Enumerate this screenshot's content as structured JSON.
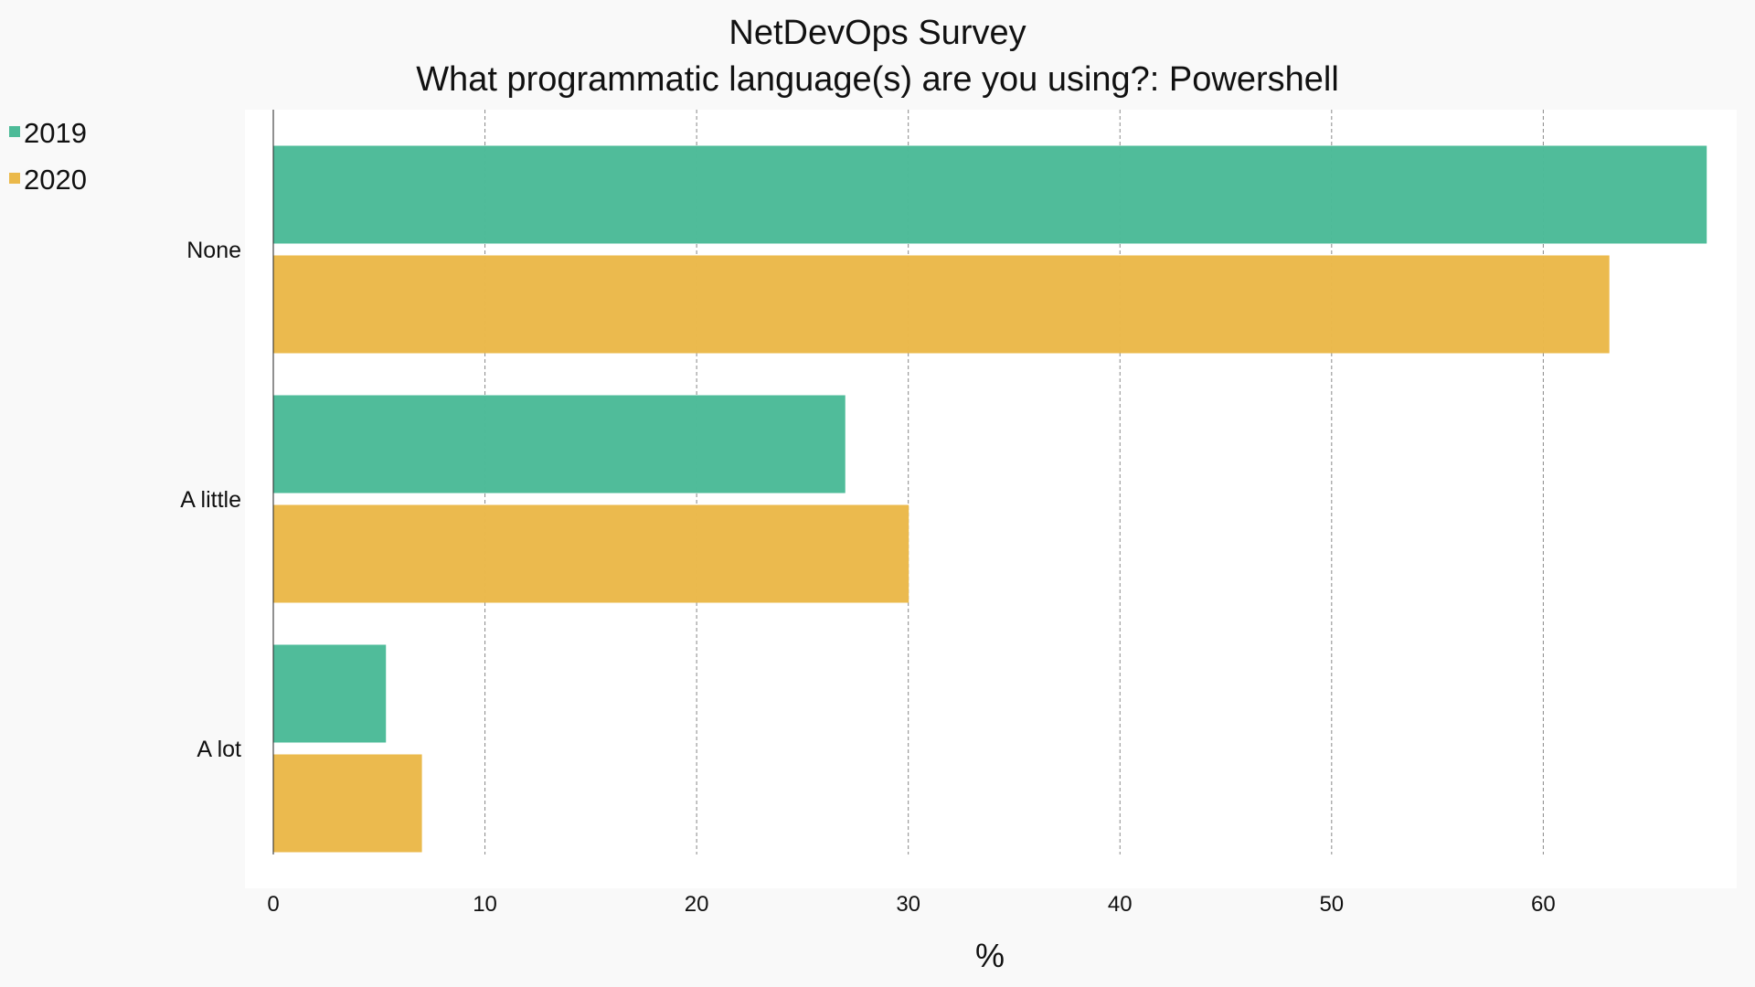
{
  "chart_data": {
    "type": "bar",
    "orientation": "horizontal",
    "title": "NetDevOps Survey",
    "subtitle": "What programmatic language(s) are you using?: Powershell",
    "xlabel": "%",
    "ylabel": "",
    "categories": [
      "None",
      "A little",
      "A lot"
    ],
    "series": [
      {
        "name": "2019",
        "color": "#4dbb98",
        "values": [
          67.7,
          27.0,
          5.3
        ]
      },
      {
        "name": "2020",
        "color": "#ebb94a",
        "values": [
          63.1,
          30.0,
          7.0
        ]
      }
    ],
    "xlim": [
      0,
      67.8
    ],
    "xticks": [
      "0",
      "10",
      "20",
      "30",
      "40",
      "50",
      "60"
    ],
    "grid": "vertical-dashed",
    "legend": "top-left"
  }
}
